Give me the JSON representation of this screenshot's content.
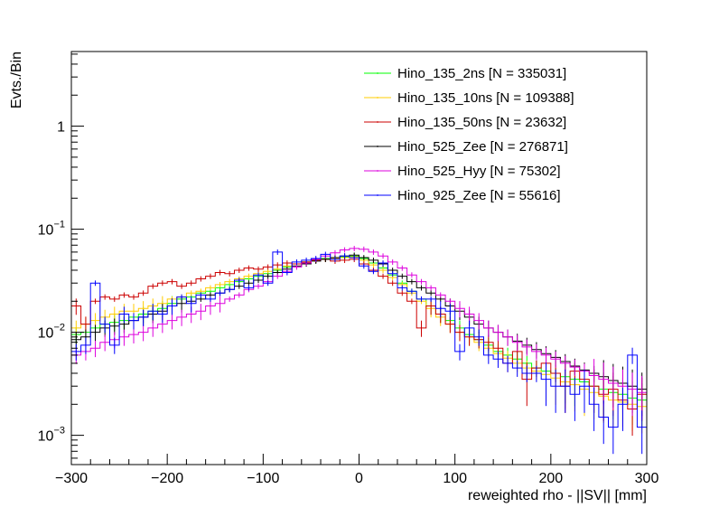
{
  "chart_data": {
    "type": "line",
    "title": "",
    "xlabel": "reweighted rho -  ||SV|| [mm]",
    "ylabel": "Evts./Bin",
    "xlim": [
      -300,
      300
    ],
    "ylim": [
      0.00052,
      5.3
    ],
    "yscale": "log",
    "legend_position": "top-right",
    "x_ticks": [
      -300,
      -200,
      -100,
      0,
      100,
      200,
      300
    ],
    "x_tick_labels": [
      "−300",
      "−200",
      "−100",
      "0",
      "100",
      "200",
      "300"
    ],
    "y_ticks": [
      {
        "value": 1,
        "base": "1",
        "exp": ""
      },
      {
        "value": 0.1,
        "base": "10",
        "exp": "−1"
      },
      {
        "value": 0.01,
        "base": "10",
        "exp": "−2"
      },
      {
        "value": 0.001,
        "base": "10",
        "exp": "−3"
      }
    ],
    "bin_edges_start": -300,
    "bin_width": 10,
    "series": [
      {
        "name": "Hino_135_2ns [N = 335031]",
        "color": "#00ff00",
        "values": [
          0.0095,
          0.01,
          0.011,
          0.012,
          0.0125,
          0.013,
          0.014,
          0.015,
          0.016,
          0.017,
          0.019,
          0.021,
          0.022,
          0.024,
          0.025,
          0.027,
          0.029,
          0.031,
          0.033,
          0.035,
          0.037,
          0.04,
          0.043,
          0.046,
          0.048,
          0.05,
          0.052,
          0.053,
          0.054,
          0.055,
          0.052,
          0.047,
          0.042,
          0.036,
          0.03,
          0.025,
          0.021,
          0.018,
          0.015,
          0.013,
          0.011,
          0.0095,
          0.0085,
          0.0075,
          0.0065,
          0.006,
          0.0055,
          0.005,
          0.0045,
          0.0042,
          0.004,
          0.0037,
          0.0035,
          0.0033,
          0.003,
          0.0028,
          0.0026,
          0.0025,
          0.0023,
          0.0022
        ]
      },
      {
        "name": "Hino_135_10ns [N = 109388]",
        "color": "#ffcc00",
        "values": [
          0.011,
          0.012,
          0.013,
          0.014,
          0.015,
          0.016,
          0.016,
          0.017,
          0.018,
          0.019,
          0.021,
          0.022,
          0.024,
          0.025,
          0.027,
          0.029,
          0.031,
          0.033,
          0.035,
          0.037,
          0.039,
          0.041,
          0.044,
          0.046,
          0.048,
          0.05,
          0.051,
          0.052,
          0.053,
          0.054,
          0.05,
          0.045,
          0.04,
          0.034,
          0.029,
          0.024,
          0.02,
          0.017,
          0.014,
          0.012,
          0.01,
          0.009,
          0.008,
          0.007,
          0.0062,
          0.0056,
          0.005,
          0.0045,
          0.0042,
          0.0039,
          0.0036,
          0.0033,
          0.0031,
          0.0028,
          0.0026,
          0.0024,
          0.0022,
          0.0021,
          0.002,
          0.0019
        ]
      },
      {
        "name": "Hino_135_50ns [N = 23632]",
        "color": "#cc0000",
        "values": [
          0.018,
          0.012,
          0.02,
          0.022,
          0.021,
          0.023,
          0.022,
          0.024,
          0.028,
          0.03,
          0.031,
          0.028,
          0.03,
          0.033,
          0.035,
          0.038,
          0.037,
          0.04,
          0.042,
          0.041,
          0.043,
          0.045,
          0.047,
          0.046,
          0.048,
          0.05,
          0.051,
          0.049,
          0.05,
          0.051,
          0.046,
          0.04,
          0.035,
          0.03,
          0.024,
          0.02,
          0.011,
          0.018,
          0.015,
          0.012,
          0.01,
          0.009,
          0.0085,
          0.008,
          0.007,
          0.005,
          0.0065,
          0.0035,
          0.0045,
          0.005,
          0.004,
          0.003,
          0.0042,
          0.0035,
          0.003,
          0.0025,
          0.0028,
          0.0022,
          0.0018,
          0.0025
        ]
      },
      {
        "name": "Hino_525_Zee [N = 276871]",
        "color": "#000000",
        "values": [
          0.0085,
          0.009,
          0.01,
          0.011,
          0.0115,
          0.012,
          0.013,
          0.014,
          0.015,
          0.016,
          0.018,
          0.019,
          0.02,
          0.021,
          0.023,
          0.024,
          0.026,
          0.028,
          0.03,
          0.032,
          0.035,
          0.038,
          0.041,
          0.044,
          0.046,
          0.049,
          0.051,
          0.053,
          0.055,
          0.056,
          0.053,
          0.05,
          0.046,
          0.04,
          0.035,
          0.031,
          0.027,
          0.024,
          0.021,
          0.018,
          0.016,
          0.014,
          0.012,
          0.011,
          0.01,
          0.009,
          0.0082,
          0.0075,
          0.0068,
          0.0062,
          0.0057,
          0.0052,
          0.0047,
          0.0043,
          0.004,
          0.0037,
          0.0034,
          0.0032,
          0.003,
          0.0028
        ]
      },
      {
        "name": "Hino_525_Hyy [N = 75302]",
        "color": "#dd00dd",
        "values": [
          0.006,
          0.0065,
          0.007,
          0.008,
          0.0085,
          0.009,
          0.0095,
          0.01,
          0.011,
          0.012,
          0.013,
          0.014,
          0.015,
          0.016,
          0.018,
          0.019,
          0.021,
          0.023,
          0.026,
          0.028,
          0.031,
          0.035,
          0.039,
          0.043,
          0.047,
          0.051,
          0.055,
          0.059,
          0.063,
          0.065,
          0.064,
          0.06,
          0.055,
          0.048,
          0.042,
          0.036,
          0.031,
          0.027,
          0.023,
          0.02,
          0.017,
          0.015,
          0.013,
          0.011,
          0.01,
          0.009,
          0.008,
          0.0072,
          0.0065,
          0.006,
          0.0055,
          0.005,
          0.0046,
          0.0042,
          0.0038,
          0.0035,
          0.0032,
          0.003,
          0.0028,
          0.0026
        ]
      },
      {
        "name": "Hino_925_Zee [N = 55616]",
        "color": "#0000ff",
        "values": [
          0.0065,
          0.0075,
          0.03,
          0.012,
          0.0075,
          0.015,
          0.013,
          0.014,
          0.016,
          0.015,
          0.018,
          0.022,
          0.019,
          0.023,
          0.021,
          0.024,
          0.026,
          0.032,
          0.027,
          0.036,
          0.03,
          0.06,
          0.038,
          0.048,
          0.05,
          0.052,
          0.057,
          0.051,
          0.055,
          0.053,
          0.044,
          0.039,
          0.047,
          0.037,
          0.027,
          0.025,
          0.021,
          0.021,
          0.017,
          0.016,
          0.0065,
          0.011,
          0.009,
          0.006,
          0.0055,
          0.005,
          0.0045,
          0.004,
          0.004,
          0.0035,
          0.003,
          0.003,
          0.0025,
          0.003,
          0.002,
          0.0015,
          0.0012,
          0.002,
          0.006,
          0.0012
        ]
      }
    ]
  }
}
